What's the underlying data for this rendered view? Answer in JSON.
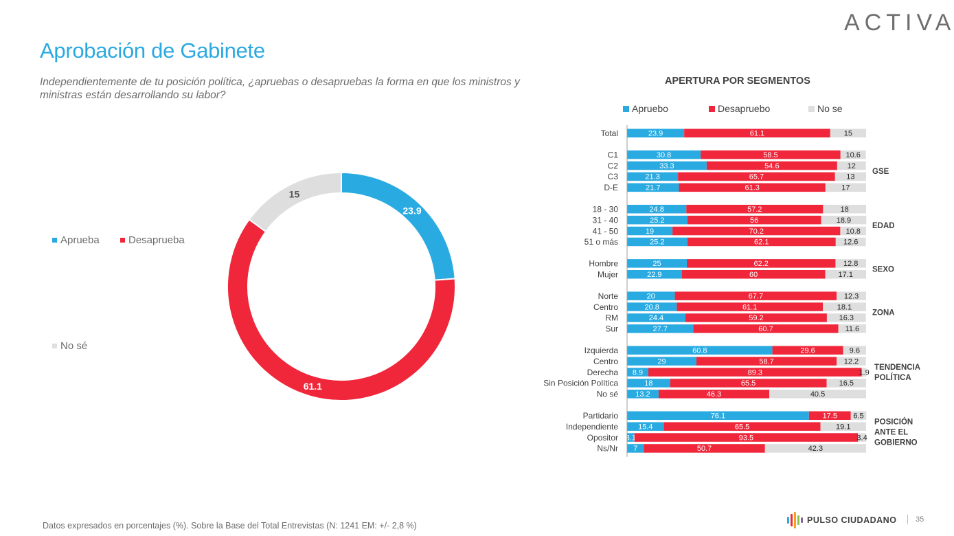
{
  "brand": "ACTIVA",
  "title": "Aprobación de Gabinete",
  "question": "Independientemente de tu posición política, ¿apruebas o desapruebas la forma en que los ministros y ministras están desarrollando su labor?",
  "footer": "Datos expresados en porcentajes (%). Sobre la Base del Total Entrevistas (N: 1241  EM: +/- 2,8 %)",
  "pulso_label": "PULSO CIUDADANO",
  "page_number": "35",
  "colors": {
    "approve": "#29abe2",
    "disapprove": "#f0263a",
    "dontknow": "#dedede",
    "title": "#2aa9e0"
  },
  "chart_data": [
    {
      "type": "pie",
      "style": "donut",
      "legend": [
        "Aprueba",
        "Desaprueba",
        "No sé"
      ],
      "slices": [
        {
          "name": "Aprueba",
          "value": 23.9,
          "label": "23.9",
          "color": "#29abe2"
        },
        {
          "name": "Desaprueba",
          "value": 61.1,
          "label": "61.1",
          "color": "#f0263a"
        },
        {
          "name": "No sé",
          "value": 15,
          "label": "15",
          "color": "#dedede"
        }
      ]
    },
    {
      "type": "bar",
      "orientation": "horizontal",
      "stacked": true,
      "title": "APERTURA POR SEGMENTOS",
      "legend": [
        "Apruebo",
        "Desapruebo",
        "No se"
      ],
      "legend_placement": "top",
      "series_colors": [
        "#29abe2",
        "#f0263a",
        "#dedede"
      ],
      "groups": [
        {
          "label": "",
          "rows": [
            {
              "label": "Total",
              "values": [
                23.9,
                61.1,
                15
              ]
            }
          ]
        },
        {
          "label": "GSE",
          "rows": [
            {
              "label": "C1",
              "values": [
                30.8,
                58.5,
                10.6
              ]
            },
            {
              "label": "C2",
              "values": [
                33.3,
                54.6,
                12
              ]
            },
            {
              "label": "C3",
              "values": [
                21.3,
                65.7,
                13
              ]
            },
            {
              "label": "D-E",
              "values": [
                21.7,
                61.3,
                17
              ]
            }
          ]
        },
        {
          "label": "EDAD",
          "rows": [
            {
              "label": "18 - 30",
              "values": [
                24.8,
                57.2,
                18
              ]
            },
            {
              "label": "31 - 40",
              "values": [
                25.2,
                56,
                18.9
              ]
            },
            {
              "label": "41 - 50",
              "values": [
                19,
                70.2,
                10.8
              ]
            },
            {
              "label": "51 o más",
              "values": [
                25.2,
                62.1,
                12.6
              ]
            }
          ]
        },
        {
          "label": "SEXO",
          "rows": [
            {
              "label": "Hombre",
              "values": [
                25,
                62.2,
                12.8
              ]
            },
            {
              "label": "Mujer",
              "values": [
                22.9,
                60,
                17.1
              ]
            }
          ]
        },
        {
          "label": "ZONA",
          "rows": [
            {
              "label": "Norte",
              "values": [
                20,
                67.7,
                12.3
              ]
            },
            {
              "label": "Centro",
              "values": [
                20.8,
                61.1,
                18.1
              ]
            },
            {
              "label": "RM",
              "values": [
                24.4,
                59.2,
                16.3
              ]
            },
            {
              "label": "Sur",
              "values": [
                27.7,
                60.7,
                11.6
              ]
            }
          ]
        },
        {
          "label": "TENDENCIA POLÍTICA",
          "rows": [
            {
              "label": "Izquierda",
              "values": [
                60.8,
                29.6,
                9.6
              ]
            },
            {
              "label": "Centro",
              "values": [
                29,
                58.7,
                12.2
              ]
            },
            {
              "label": "Derecha",
              "values": [
                8.9,
                89.3,
                1.9
              ]
            },
            {
              "label": "Sin Posición Política",
              "values": [
                18,
                65.5,
                16.5
              ]
            },
            {
              "label": "No sé",
              "values": [
                13.2,
                46.3,
                40.5
              ]
            }
          ]
        },
        {
          "label": "POSICIÓN ANTE EL GOBIERNO",
          "rows": [
            {
              "label": "Partidario",
              "values": [
                76.1,
                17.5,
                6.5
              ]
            },
            {
              "label": "Independiente",
              "values": [
                15.4,
                65.5,
                19.1
              ]
            },
            {
              "label": "Opositor",
              "values": [
                3.1,
                93.5,
                3.4
              ]
            },
            {
              "label": "Ns/Nr",
              "values": [
                7,
                50.7,
                42.3
              ]
            }
          ]
        }
      ]
    }
  ]
}
